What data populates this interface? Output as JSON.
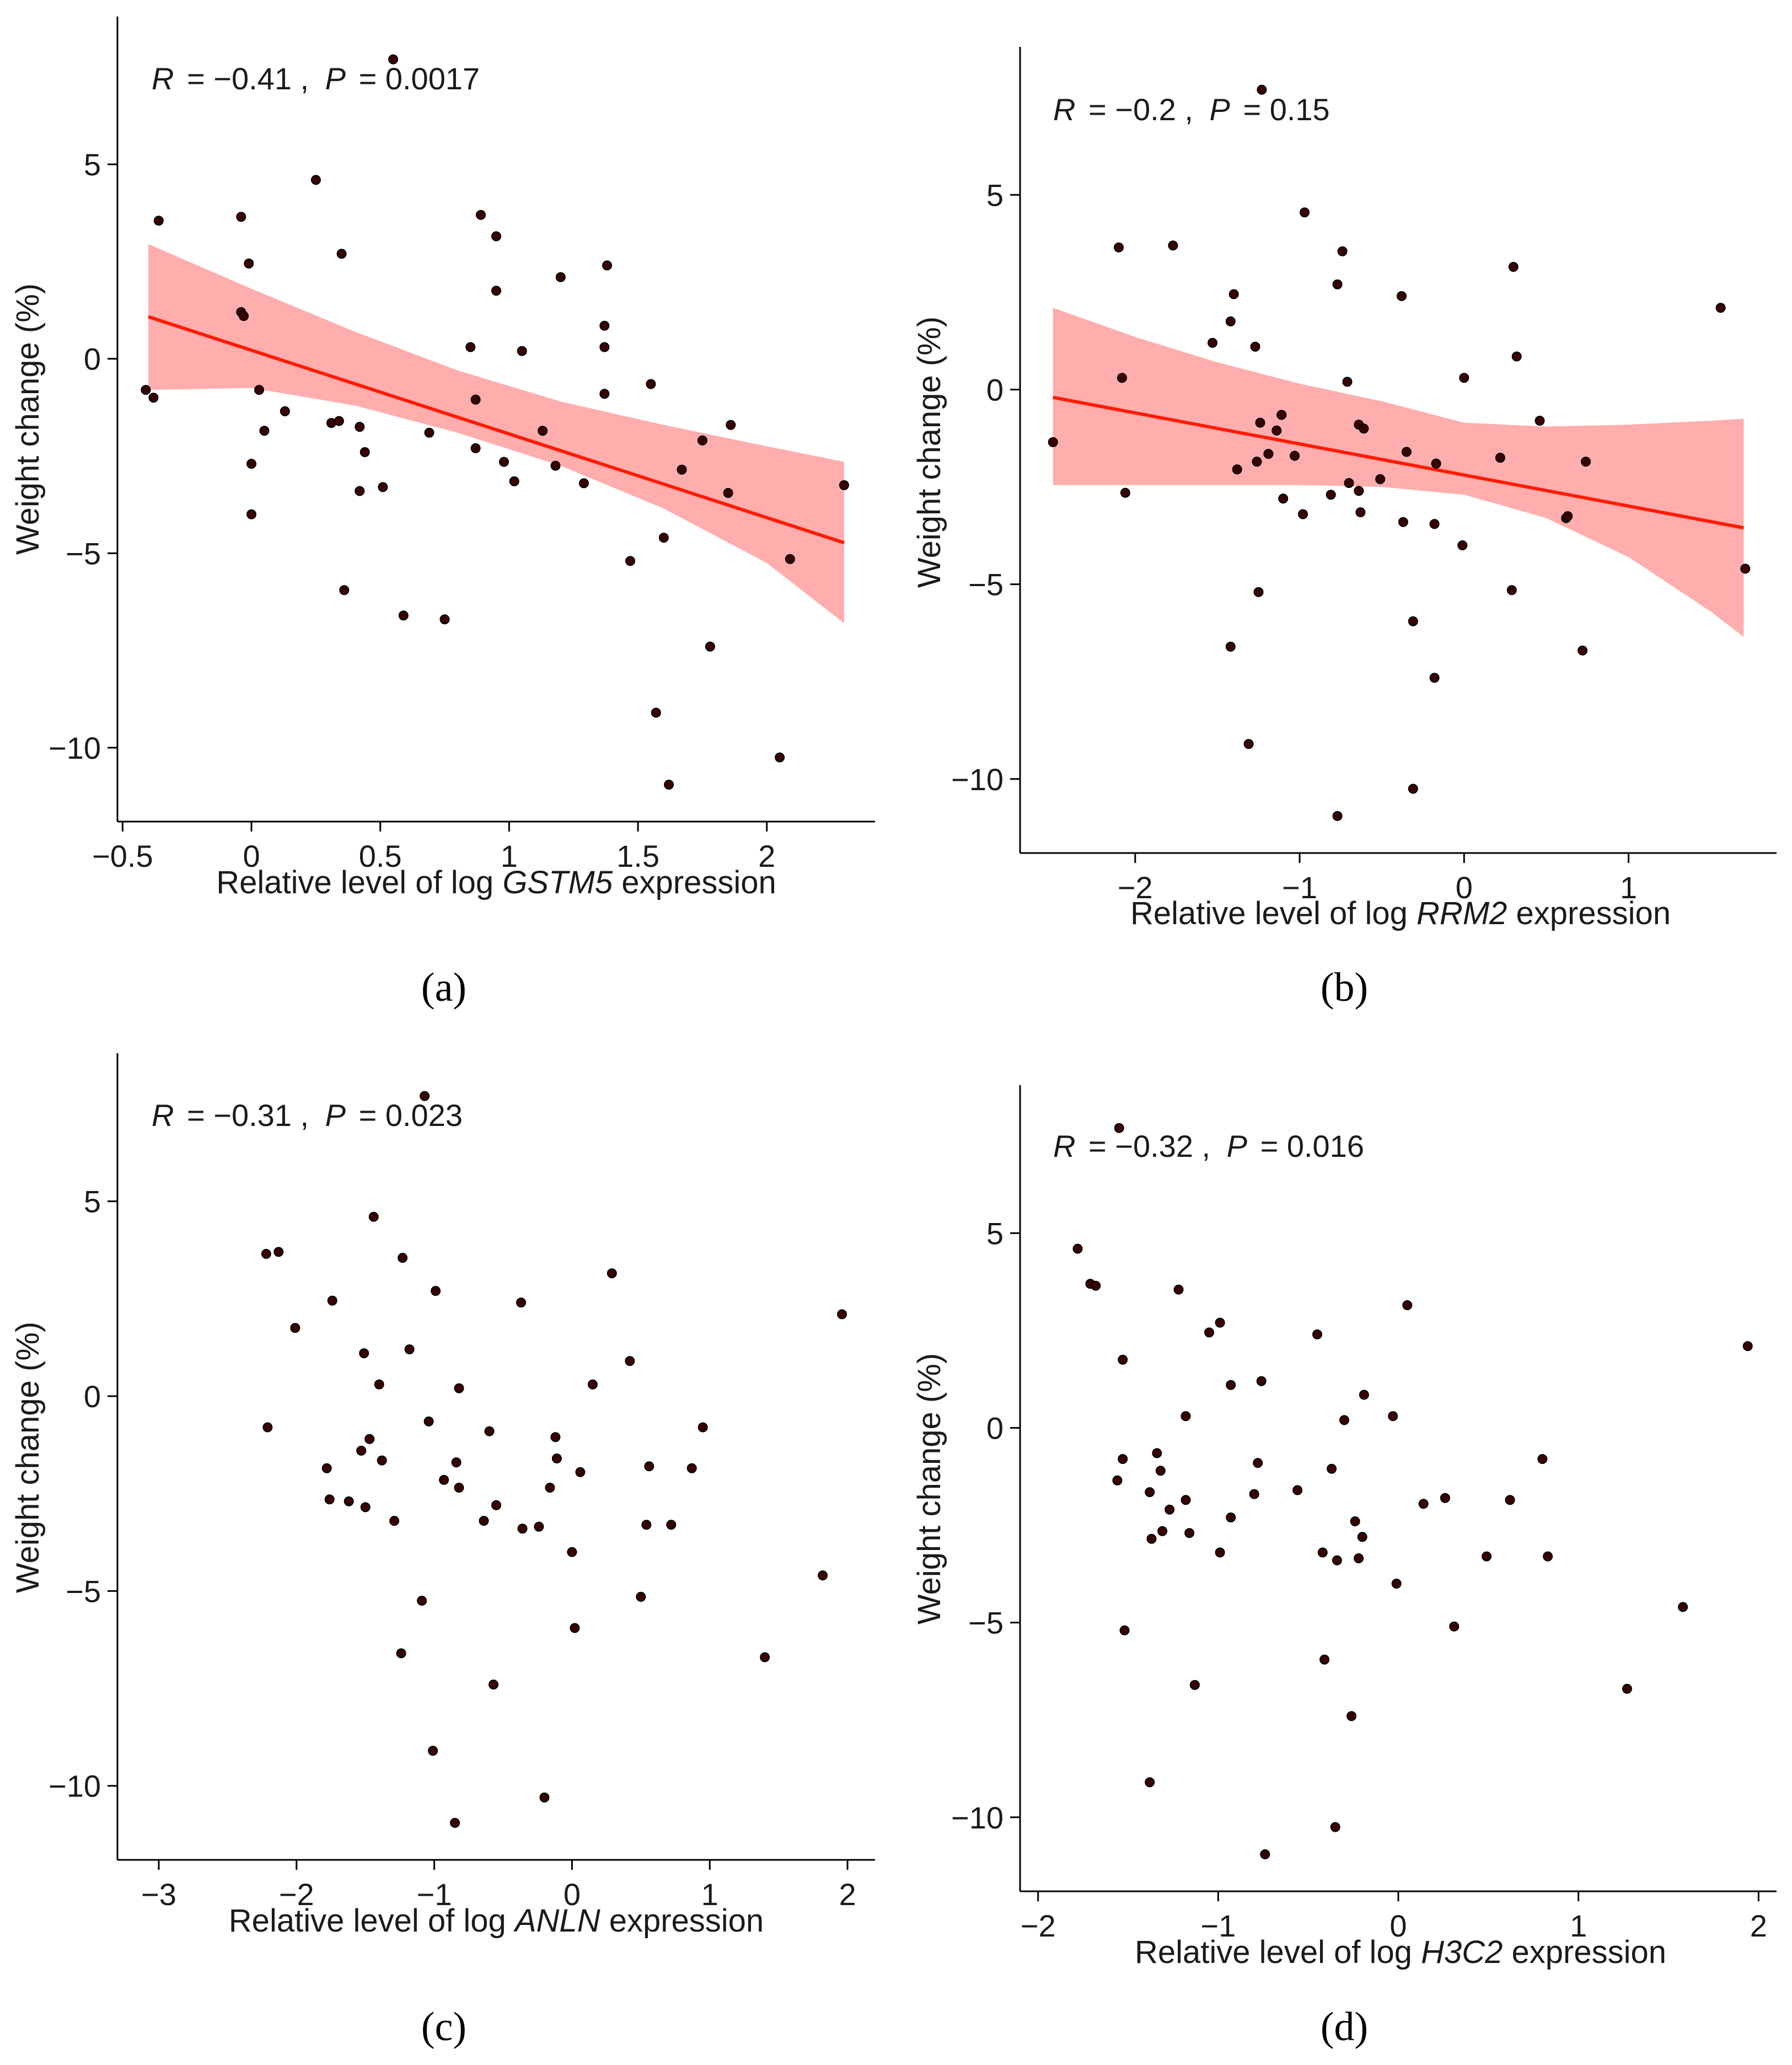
{
  "chart_data": [
    {
      "id": "a",
      "type": "scatter",
      "panel_label": "(a)",
      "annotation": {
        "r_label": "R",
        "r_value": "= −0.41 ,",
        "p_label": "P",
        "p_value": "= 0.0017"
      },
      "xlabel": {
        "prefix": "Relative level of log ",
        "gene": "GSTM5",
        "suffix": " expression"
      },
      "ylabel": "Weight change (%)",
      "xlim": [
        -0.52,
        2.42
      ],
      "ylim": [
        -11.9,
        8.8
      ],
      "xticks": [
        -0.5,
        0,
        0.5,
        1,
        1.5,
        2
      ],
      "xtick_labels": [
        "−0.5",
        "0",
        "0.5",
        "1",
        "1.5",
        "2"
      ],
      "yticks": [
        5,
        0,
        -5,
        -10
      ],
      "ytick_labels": [
        "5",
        "0",
        "−5",
        "−10"
      ],
      "fit": {
        "x": [
          -0.4,
          2.3
        ],
        "y": [
          1.08,
          -4.73
        ]
      },
      "ci": {
        "x": [
          -0.4,
          0,
          0.4,
          0.8,
          1.2,
          1.6,
          2.0,
          2.3
        ],
        "upper": [
          2.95,
          1.8,
          0.7,
          -0.3,
          -1.1,
          -1.7,
          -2.25,
          -2.65
        ],
        "lower": [
          -0.8,
          -0.75,
          -1.2,
          -1.9,
          -2.75,
          -3.85,
          -5.25,
          -6.8
        ]
      },
      "points": [
        [
          -0.41,
          -0.8
        ],
        [
          -0.38,
          -1.0
        ],
        [
          -0.36,
          3.55
        ],
        [
          -0.04,
          3.65
        ],
        [
          -0.04,
          1.2
        ],
        [
          -0.03,
          1.1
        ],
        [
          -0.01,
          2.45
        ],
        [
          0.0,
          -2.7
        ],
        [
          0.0,
          -4.0
        ],
        [
          0.03,
          -0.8
        ],
        [
          0.05,
          -1.85
        ],
        [
          0.13,
          -1.35
        ],
        [
          0.25,
          4.6
        ],
        [
          0.31,
          -1.65
        ],
        [
          0.34,
          -1.6
        ],
        [
          0.35,
          2.7
        ],
        [
          0.36,
          -5.95
        ],
        [
          0.42,
          -1.75
        ],
        [
          0.42,
          -3.4
        ],
        [
          0.44,
          -2.4
        ],
        [
          0.51,
          -3.3
        ],
        [
          0.59,
          -6.6
        ],
        [
          0.69,
          -1.9
        ],
        [
          0.75,
          -6.7
        ],
        [
          0.85,
          0.3
        ],
        [
          0.87,
          -2.3
        ],
        [
          0.87,
          -1.05
        ],
        [
          0.89,
          3.7
        ],
        [
          0.95,
          3.15
        ],
        [
          0.95,
          1.75
        ],
        [
          0.98,
          -2.65
        ],
        [
          1.02,
          -3.15
        ],
        [
          1.05,
          0.2
        ],
        [
          1.13,
          -1.85
        ],
        [
          1.18,
          -2.75
        ],
        [
          1.2,
          2.1
        ],
        [
          1.29,
          -3.2
        ],
        [
          1.37,
          0.85
        ],
        [
          1.37,
          0.3
        ],
        [
          1.37,
          -0.9
        ],
        [
          1.38,
          2.4
        ],
        [
          1.47,
          -5.2
        ],
        [
          1.55,
          -0.65
        ],
        [
          1.57,
          -9.1
        ],
        [
          1.6,
          -4.6
        ],
        [
          1.62,
          -10.95
        ],
        [
          1.67,
          -2.85
        ],
        [
          1.75,
          -2.1
        ],
        [
          1.78,
          -7.4
        ],
        [
          1.85,
          -3.45
        ],
        [
          1.86,
          -1.7
        ],
        [
          2.05,
          -10.25
        ],
        [
          2.09,
          -5.15
        ],
        [
          2.3,
          -3.25
        ],
        [
          0.55,
          7.7
        ]
      ]
    },
    {
      "id": "b",
      "type": "scatter",
      "panel_label": "(b)",
      "annotation": {
        "r_label": "R",
        "r_value": "= −0.2 ,",
        "p_label": "P",
        "p_value": "= 0.15"
      },
      "xlabel": {
        "prefix": "Relative level of log ",
        "gene": "RRM2",
        "suffix": " expression"
      },
      "ylabel": "Weight change (%)",
      "xlim": [
        -2.7,
        1.9
      ],
      "ylim": [
        -11.9,
        8.8
      ],
      "xticks": [
        -2,
        -1,
        0,
        1
      ],
      "xtick_labels": [
        "−2",
        "−1",
        "0",
        "1"
      ],
      "yticks": [
        5,
        0,
        -5,
        -10
      ],
      "ytick_labels": [
        "5",
        "0",
        "−5",
        "−10"
      ],
      "fit": {
        "x": [
          -2.5,
          1.7
        ],
        "y": [
          -0.2,
          -3.55
        ]
      },
      "ci": {
        "x": [
          -2.5,
          -2.0,
          -1.5,
          -1.0,
          -0.5,
          0.0,
          0.5,
          1.0,
          1.5,
          1.7
        ],
        "upper": [
          2.1,
          1.35,
          0.7,
          0.15,
          -0.3,
          -0.85,
          -0.95,
          -0.9,
          -0.8,
          -0.75
        ],
        "lower": [
          -2.45,
          -2.45,
          -2.45,
          -2.45,
          -2.5,
          -2.7,
          -3.3,
          -4.3,
          -5.7,
          -6.35
        ]
      },
      "points": [
        [
          -2.5,
          -1.35
        ],
        [
          -2.1,
          3.65
        ],
        [
          -2.08,
          0.3
        ],
        [
          -2.06,
          -2.65
        ],
        [
          -1.77,
          3.7
        ],
        [
          -1.53,
          1.2
        ],
        [
          -1.42,
          1.75
        ],
        [
          -1.4,
          2.45
        ],
        [
          -1.42,
          -6.6
        ],
        [
          -1.38,
          -2.05
        ],
        [
          -1.31,
          -9.1
        ],
        [
          -1.27,
          1.1
        ],
        [
          -1.26,
          -1.85
        ],
        [
          -1.25,
          -5.2
        ],
        [
          -1.24,
          -0.85
        ],
        [
          -1.19,
          -1.65
        ],
        [
          -1.14,
          -1.05
        ],
        [
          -1.11,
          -0.65
        ],
        [
          -1.1,
          -2.8
        ],
        [
          -1.03,
          -1.7
        ],
        [
          -0.98,
          -3.2
        ],
        [
          -0.97,
          4.55
        ],
        [
          -0.81,
          -2.7
        ],
        [
          -0.77,
          2.7
        ],
        [
          -0.77,
          -10.95
        ],
        [
          -0.74,
          3.55
        ],
        [
          -0.71,
          0.2
        ],
        [
          -0.7,
          -2.4
        ],
        [
          -0.64,
          -0.9
        ],
        [
          -0.64,
          -2.6
        ],
        [
          -0.63,
          -3.15
        ],
        [
          -0.61,
          -1.0
        ],
        [
          -0.51,
          -2.3
        ],
        [
          -0.38,
          2.4
        ],
        [
          -0.37,
          -3.4
        ],
        [
          -0.35,
          -1.6
        ],
        [
          -0.31,
          -5.95
        ],
        [
          -0.31,
          -10.25
        ],
        [
          -0.18,
          -7.4
        ],
        [
          -0.18,
          -3.45
        ],
        [
          -0.17,
          -1.9
        ],
        [
          -0.01,
          -4.0
        ],
        [
          0.0,
          0.3
        ],
        [
          0.22,
          -1.75
        ],
        [
          0.29,
          -5.15
        ],
        [
          0.3,
          3.15
        ],
        [
          0.32,
          0.85
        ],
        [
          0.46,
          -0.8
        ],
        [
          0.62,
          -3.3
        ],
        [
          0.63,
          -3.25
        ],
        [
          0.72,
          -6.7
        ],
        [
          0.74,
          -1.85
        ],
        [
          1.56,
          2.1
        ],
        [
          1.71,
          -4.6
        ],
        [
          -1.23,
          7.7
        ]
      ]
    },
    {
      "id": "c",
      "type": "scatter",
      "panel_label": "(c)",
      "annotation": {
        "r_label": "R",
        "r_value": "= −0.31 ,",
        "p_label": "P",
        "p_value": "= 0.023"
      },
      "xlabel": {
        "prefix": "Relative level of log ",
        "gene": "ANLN",
        "suffix": " expression"
      },
      "ylabel": "Weight change (%)",
      "xlim": [
        -3.3,
        2.2
      ],
      "ylim": [
        -11.9,
        8.8
      ],
      "xticks": [
        -3,
        -2,
        -1,
        0,
        1,
        2
      ],
      "xtick_labels": [
        "−3",
        "−2",
        "−1",
        "0",
        "1",
        "2"
      ],
      "yticks": [
        5,
        0,
        -5,
        -10
      ],
      "ytick_labels": [
        "5",
        "0",
        "−5",
        "−10"
      ],
      "points": [
        [
          -2.22,
          3.65
        ],
        [
          -2.21,
          -0.8
        ],
        [
          -2.13,
          3.7
        ],
        [
          -2.01,
          1.75
        ],
        [
          -1.78,
          -1.85
        ],
        [
          -1.76,
          -2.65
        ],
        [
          -1.74,
          2.45
        ],
        [
          -1.62,
          -2.7
        ],
        [
          -1.53,
          -1.4
        ],
        [
          -1.51,
          1.1
        ],
        [
          -1.5,
          -2.85
        ],
        [
          -1.47,
          -1.1
        ],
        [
          -1.44,
          4.6
        ],
        [
          -1.4,
          0.3
        ],
        [
          -1.38,
          -1.65
        ],
        [
          -1.29,
          -3.2
        ],
        [
          -1.24,
          -6.6
        ],
        [
          -1.23,
          3.55
        ],
        [
          -1.18,
          1.2
        ],
        [
          -1.09,
          -5.25
        ],
        [
          -1.04,
          -0.65
        ],
        [
          -1.01,
          -9.1
        ],
        [
          -0.99,
          2.7
        ],
        [
          -0.93,
          -2.15
        ],
        [
          -0.85,
          -10.95
        ],
        [
          -0.84,
          -1.7
        ],
        [
          -0.82,
          -2.35
        ],
        [
          -0.82,
          0.2
        ],
        [
          -0.64,
          -3.2
        ],
        [
          -0.6,
          -0.9
        ],
        [
          -0.57,
          -7.4
        ],
        [
          -0.55,
          -2.8
        ],
        [
          -0.36,
          -3.4
        ],
        [
          -0.37,
          2.4
        ],
        [
          -0.24,
          -3.35
        ],
        [
          -0.2,
          -10.3
        ],
        [
          -0.16,
          -2.35
        ],
        [
          -0.12,
          -1.05
        ],
        [
          -0.11,
          -1.6
        ],
        [
          0.0,
          -4.0
        ],
        [
          0.02,
          -5.95
        ],
        [
          0.06,
          -1.95
        ],
        [
          0.15,
          0.3
        ],
        [
          0.29,
          3.15
        ],
        [
          0.42,
          0.9
        ],
        [
          0.5,
          -5.15
        ],
        [
          0.54,
          -3.3
        ],
        [
          0.56,
          -1.8
        ],
        [
          0.72,
          -3.3
        ],
        [
          0.87,
          -1.85
        ],
        [
          0.95,
          -0.8
        ],
        [
          1.4,
          -6.7
        ],
        [
          1.82,
          -4.6
        ],
        [
          1.96,
          2.1
        ],
        [
          -1.07,
          7.7
        ]
      ]
    },
    {
      "id": "d",
      "type": "scatter",
      "panel_label": "(d)",
      "annotation": {
        "r_label": "R",
        "r_value": "= −0.32 ,",
        "p_label": "P",
        "p_value": "= 0.016"
      },
      "xlabel": {
        "prefix": "Relative level of log ",
        "gene": "H3C2",
        "suffix": " expression"
      },
      "ylabel": "Weight change (%)",
      "xlim": [
        -2.1,
        2.1
      ],
      "ylim": [
        -11.9,
        8.8
      ],
      "xticks": [
        -2,
        -1,
        0,
        1,
        2
      ],
      "xtick_labels": [
        "−2",
        "−1",
        "0",
        "1",
        "2"
      ],
      "yticks": [
        5,
        0,
        -5,
        -10
      ],
      "ytick_labels": [
        "5",
        "0",
        "−5",
        "−10"
      ],
      "points": [
        [
          -1.78,
          4.6
        ],
        [
          -1.71,
          3.7
        ],
        [
          -1.68,
          3.65
        ],
        [
          -1.56,
          -1.35
        ],
        [
          -1.53,
          1.75
        ],
        [
          -1.52,
          -5.2
        ],
        [
          -1.53,
          -0.8
        ],
        [
          -1.38,
          -9.1
        ],
        [
          -1.38,
          -1.65
        ],
        [
          -1.37,
          -2.85
        ],
        [
          -1.34,
          -0.65
        ],
        [
          -1.32,
          -1.1
        ],
        [
          -1.31,
          -2.65
        ],
        [
          -1.27,
          -2.1
        ],
        [
          -1.22,
          3.55
        ],
        [
          -1.18,
          0.3
        ],
        [
          -1.18,
          -1.85
        ],
        [
          -1.16,
          -2.7
        ],
        [
          -1.13,
          -6.6
        ],
        [
          -1.05,
          2.45
        ],
        [
          -0.99,
          2.7
        ],
        [
          -0.99,
          -3.2
        ],
        [
          -0.93,
          1.1
        ],
        [
          -0.93,
          -2.3
        ],
        [
          -0.8,
          -1.7
        ],
        [
          -0.78,
          -0.9
        ],
        [
          -0.76,
          1.2
        ],
        [
          -0.74,
          -10.95
        ],
        [
          -0.56,
          -1.6
        ],
        [
          -0.45,
          2.4
        ],
        [
          -0.42,
          -3.2
        ],
        [
          -0.41,
          -5.95
        ],
        [
          -0.37,
          -1.05
        ],
        [
          -0.35,
          -10.25
        ],
        [
          -0.34,
          -3.4
        ],
        [
          -0.3,
          0.2
        ],
        [
          -0.26,
          -7.4
        ],
        [
          -0.24,
          -2.4
        ],
        [
          -0.22,
          -3.35
        ],
        [
          -0.2,
          -2.8
        ],
        [
          -0.19,
          0.85
        ],
        [
          -0.03,
          0.3
        ],
        [
          -0.01,
          -4.0
        ],
        [
          0.05,
          3.15
        ],
        [
          0.14,
          -1.95
        ],
        [
          0.26,
          -1.8
        ],
        [
          0.31,
          -5.1
        ],
        [
          0.49,
          -3.3
        ],
        [
          0.62,
          -1.85
        ],
        [
          0.8,
          -0.8
        ],
        [
          0.83,
          -3.3
        ],
        [
          1.27,
          -6.7
        ],
        [
          1.58,
          -4.6
        ],
        [
          1.94,
          2.1
        ],
        [
          -1.55,
          7.7
        ]
      ]
    }
  ]
}
